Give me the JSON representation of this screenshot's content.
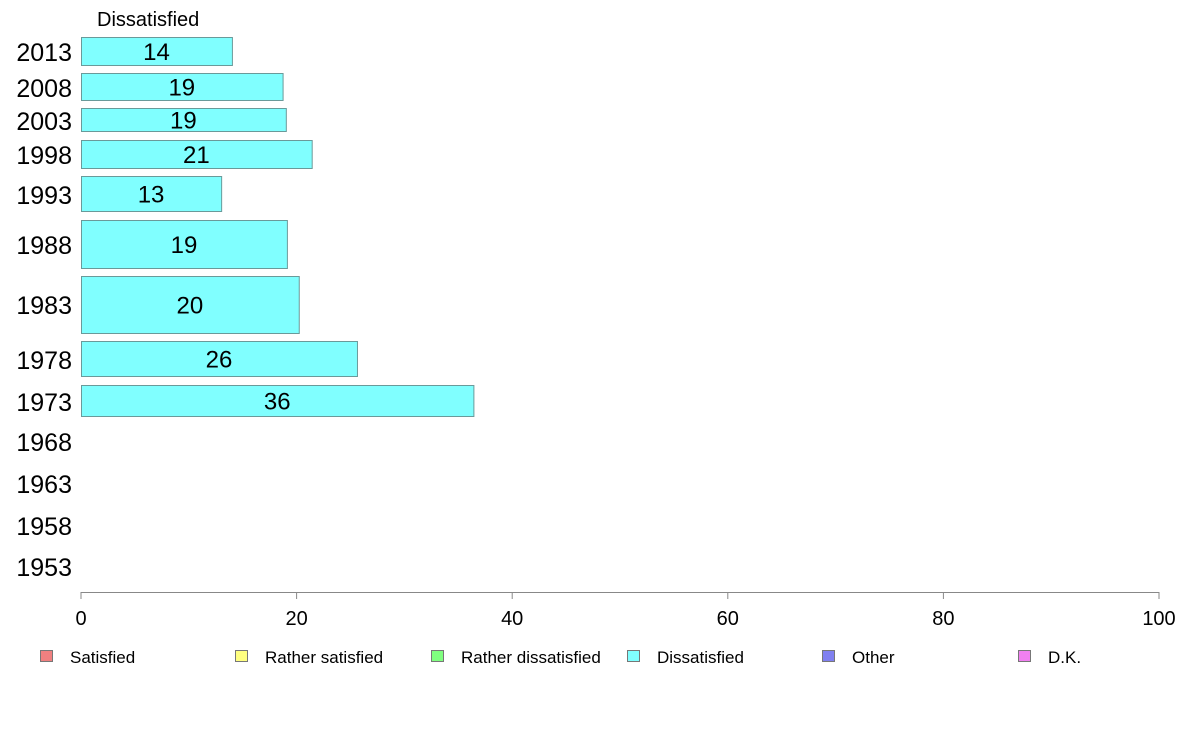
{
  "chart_data": {
    "type": "bar",
    "orientation": "horizontal",
    "panel_title": "Dissatisfied",
    "categories": [
      "2013",
      "2008",
      "2003",
      "1998",
      "1993",
      "1988",
      "1983",
      "1978",
      "1973",
      "1968",
      "1963",
      "1958",
      "1953"
    ],
    "series": [
      {
        "name": "Dissatisfied",
        "color": "#80FFFF",
        "values": [
          14,
          19,
          19,
          21,
          13,
          19,
          20,
          26,
          36,
          null,
          null,
          null,
          null
        ],
        "bar_values": [
          14.0,
          18.7,
          19.0,
          21.4,
          13.0,
          19.1,
          20.2,
          25.6,
          36.4,
          null,
          null,
          null,
          null
        ]
      }
    ],
    "xlim": [
      0,
      100
    ],
    "xticks": [
      0,
      20,
      40,
      60,
      80,
      100
    ],
    "grid": false,
    "legend_position": "bottom",
    "legend": [
      {
        "label": "Satisfied",
        "color": "#F08080"
      },
      {
        "label": "Rather satisfied",
        "color": "#FFFF80"
      },
      {
        "label": "Rather dissatisfied",
        "color": "#80FF80"
      },
      {
        "label": "Dissatisfied",
        "color": "#80FFFF"
      },
      {
        "label": "Other",
        "color": "#8080F0"
      },
      {
        "label": "D.K.",
        "color": "#F080F0"
      }
    ]
  }
}
